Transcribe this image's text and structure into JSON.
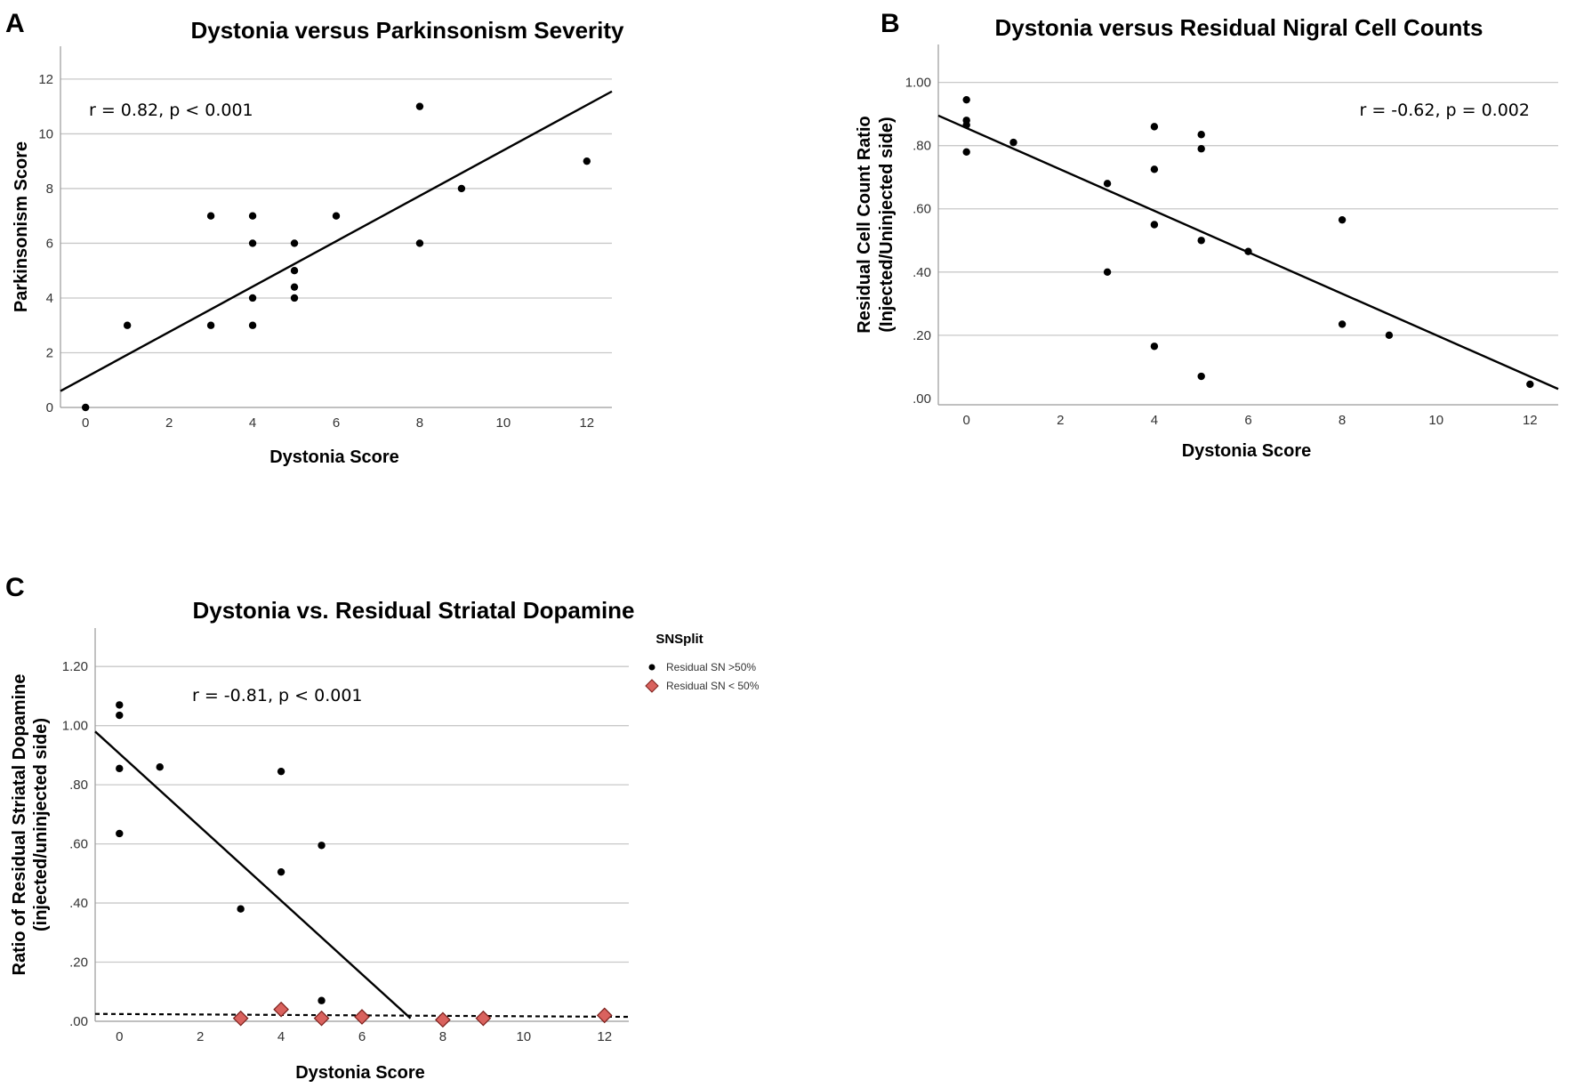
{
  "chart_data": [
    {
      "id": "A",
      "panel_label": "A",
      "type": "scatter",
      "title": "Dystonia versus Parkinsonism Severity",
      "xlabel": "Dystonia Score",
      "ylabel": "Parkinsonism Score",
      "xlim": [
        -0.6,
        12.6
      ],
      "ylim": [
        0,
        13.2
      ],
      "xticks": [
        0,
        2,
        4,
        6,
        8,
        10,
        12
      ],
      "xtick_labels": [
        "0",
        "2",
        "4",
        "6",
        "8",
        "10",
        "12"
      ],
      "yticks": [
        0,
        2,
        4,
        6,
        8,
        10,
        12
      ],
      "ytick_labels": [
        "0",
        "2",
        "4",
        "6",
        "8",
        "10",
        "12"
      ],
      "grid": "horizontal",
      "annotation": "r = 0.82, p < 0.001",
      "series": [
        {
          "name": "data",
          "marker": "circle",
          "x": [
            0,
            1,
            3,
            3,
            4,
            4,
            4,
            4,
            5,
            5,
            5,
            5,
            6,
            8,
            8,
            9,
            12
          ],
          "y": [
            0,
            3,
            7,
            3,
            7,
            6,
            4,
            3,
            6,
            5,
            4.4,
            4,
            7,
            11,
            6,
            8,
            9
          ]
        }
      ],
      "fit_line": {
        "x": [
          -0.6,
          12.6
        ],
        "y": [
          0.6,
          11.55
        ]
      }
    },
    {
      "id": "B",
      "panel_label": "B",
      "type": "scatter",
      "title": "Dystonia versus Residual Nigral Cell Counts",
      "xlabel": "Dystonia Score",
      "ylabel": "Residual Cell Count Ratio",
      "ylabel2": "(Injected/Uninjected side)",
      "xlim": [
        -0.6,
        12.6
      ],
      "ylim": [
        -0.02,
        1.12
      ],
      "xticks": [
        0,
        2,
        4,
        6,
        8,
        10,
        12
      ],
      "xtick_labels": [
        "0",
        "2",
        "4",
        "6",
        "8",
        "10",
        "12"
      ],
      "yticks": [
        0,
        0.2,
        0.4,
        0.6,
        0.8,
        1.0
      ],
      "ytick_labels": [
        ".00",
        ".20",
        ".40",
        ".60",
        ".80",
        "1.00"
      ],
      "grid": "horizontal",
      "annotation": "r = -0.62, p = 0.002",
      "series": [
        {
          "name": "data",
          "marker": "circle",
          "x": [
            0,
            0,
            0,
            0,
            1,
            3,
            3,
            4,
            4,
            4,
            4,
            5,
            5,
            5,
            5,
            6,
            8,
            8,
            9,
            12
          ],
          "y": [
            0.945,
            0.88,
            0.865,
            0.78,
            0.81,
            0.68,
            0.4,
            0.86,
            0.725,
            0.55,
            0.165,
            0.835,
            0.79,
            0.5,
            0.07,
            0.465,
            0.565,
            0.235,
            0.2,
            0.045
          ]
        }
      ],
      "fit_line": {
        "x": [
          -0.6,
          12.6
        ],
        "y": [
          0.895,
          0.03
        ]
      }
    },
    {
      "id": "C",
      "panel_label": "C",
      "type": "scatter",
      "title": "Dystonia vs. Residual Striatal Dopamine",
      "xlabel": "Dystonia Score",
      "ylabel": "Ratio of Residual Striatal Dopamine",
      "ylabel2": "(injected/uninjected side)",
      "xlim": [
        -0.6,
        12.6
      ],
      "ylim": [
        0,
        1.33
      ],
      "xticks": [
        0,
        2,
        4,
        6,
        8,
        10,
        12
      ],
      "xtick_labels": [
        "0",
        "2",
        "4",
        "6",
        "8",
        "10",
        "12"
      ],
      "yticks": [
        0,
        0.2,
        0.4,
        0.6,
        0.8,
        1.0,
        1.2
      ],
      "ytick_labels": [
        ".00",
        ".20",
        ".40",
        ".60",
        ".80",
        "1.00",
        "1.20"
      ],
      "grid": "horizontal",
      "annotation": "r = -0.81, p < 0.001",
      "legend": {
        "title": "SNSplit",
        "position": "right"
      },
      "series": [
        {
          "name": "Residual SN >50%",
          "marker": "circle",
          "color": "#000000",
          "x": [
            0,
            0,
            0,
            0,
            1,
            3,
            4,
            4,
            5,
            5
          ],
          "y": [
            1.07,
            1.035,
            0.855,
            0.635,
            0.86,
            0.38,
            0.845,
            0.505,
            0.595,
            0.07
          ]
        },
        {
          "name": "Residual SN < 50%",
          "marker": "diamond",
          "color": "#d9625e",
          "x": [
            3,
            4,
            5,
            6,
            8,
            9,
            12
          ],
          "y": [
            0.01,
            0.04,
            0.01,
            0.015,
            0.005,
            0.01,
            0.02
          ]
        }
      ],
      "fit_line": {
        "x": [
          -0.6,
          7.2
        ],
        "y": [
          0.98,
          0.01
        ]
      },
      "reference_line": {
        "style": "dashed",
        "x": [
          -0.6,
          12.6
        ],
        "y": [
          0.025,
          0.015
        ]
      }
    }
  ]
}
